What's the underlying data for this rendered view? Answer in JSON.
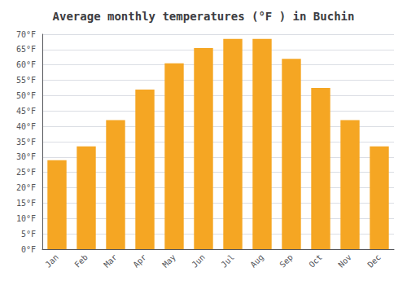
{
  "chart_data": {
    "type": "bar",
    "title": "Average monthly temperatures (°F ) in Buchin",
    "categories": [
      "Jan",
      "Feb",
      "Mar",
      "Apr",
      "May",
      "Jun",
      "Jul",
      "Aug",
      "Sep",
      "Oct",
      "Nov",
      "Dec"
    ],
    "values": [
      29,
      33.5,
      42,
      52,
      60.5,
      65.5,
      68.5,
      68.5,
      62,
      52.5,
      42,
      33.5
    ],
    "color": "#F5A623",
    "ylim": [
      0,
      70
    ],
    "yticks": [
      {
        "value": 0,
        "label": "0°F"
      },
      {
        "value": 5,
        "label": "5°F"
      },
      {
        "value": 10,
        "label": "10°F"
      },
      {
        "value": 15,
        "label": "15°F"
      },
      {
        "value": 20,
        "label": "20°F"
      },
      {
        "value": 25,
        "label": "25°F"
      },
      {
        "value": 30,
        "label": "30°F"
      },
      {
        "value": 35,
        "label": "35°F"
      },
      {
        "value": 40,
        "label": "40°F"
      },
      {
        "value": 45,
        "label": "45°F"
      },
      {
        "value": 50,
        "label": "50°F"
      },
      {
        "value": 55,
        "label": "55°F"
      },
      {
        "value": 60,
        "label": "60°F"
      },
      {
        "value": 65,
        "label": "65°F"
      },
      {
        "value": 70,
        "label": "70°F"
      }
    ],
    "grid": true
  }
}
